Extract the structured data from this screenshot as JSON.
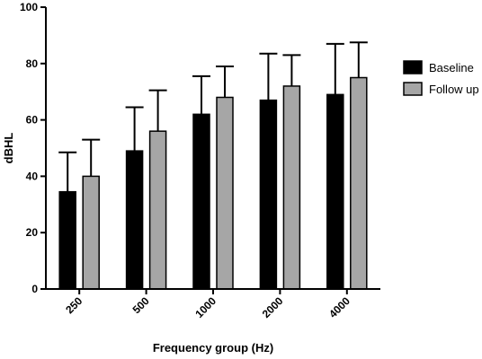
{
  "chart_data": {
    "type": "bar",
    "title": "",
    "xlabel": "Frequency group (Hz)",
    "ylabel": "dBHL",
    "ylim": [
      0,
      100
    ],
    "yticks": [
      0,
      20,
      40,
      60,
      80,
      100
    ],
    "categories": [
      "250",
      "500",
      "1000",
      "2000",
      "4000"
    ],
    "error_bars": "upper",
    "legend_position": "right",
    "grid": false,
    "series": [
      {
        "name": "Baseline",
        "color": "#000000",
        "values": [
          34.5,
          49,
          62,
          67,
          69
        ],
        "errors": [
          14,
          15.5,
          13.5,
          16.5,
          18
        ]
      },
      {
        "name": "Follow up",
        "color": "#a6a6a6",
        "values": [
          40,
          56,
          68,
          72,
          75
        ],
        "errors": [
          13,
          14.5,
          11,
          11,
          12.5
        ]
      }
    ]
  }
}
